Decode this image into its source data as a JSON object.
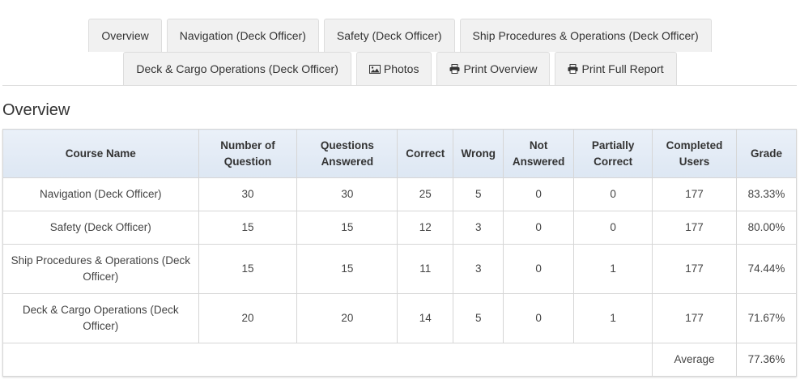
{
  "tabs": {
    "overview": "Overview",
    "navigation": "Navigation (Deck Officer)",
    "safety": "Safety (Deck Officer)",
    "ship_procedures": "Ship Procedures & Operations (Deck Officer)",
    "deck_cargo": "Deck & Cargo Operations (Deck Officer)",
    "photos": "Photos",
    "print_overview": "Print Overview",
    "print_full": "Print Full Report"
  },
  "section_title": "Overview",
  "table": {
    "headers": {
      "course_name": "Course Name",
      "num_questions": "Number of Question",
      "answered": "Questions Answered",
      "correct": "Correct",
      "wrong": "Wrong",
      "not_answered": "Not Answered",
      "partially": "Partially Correct",
      "completed": "Completed Users",
      "grade": "Grade"
    },
    "rows": [
      {
        "course": "Navigation (Deck Officer)",
        "num": "30",
        "answered": "30",
        "correct": "25",
        "wrong": "5",
        "not_answered": "0",
        "partial": "0",
        "completed": "177",
        "grade": "83.33%"
      },
      {
        "course": "Safety (Deck Officer)",
        "num": "15",
        "answered": "15",
        "correct": "12",
        "wrong": "3",
        "not_answered": "0",
        "partial": "0",
        "completed": "177",
        "grade": "80.00%"
      },
      {
        "course": "Ship Procedures & Operations (Deck Officer)",
        "num": "15",
        "answered": "15",
        "correct": "11",
        "wrong": "3",
        "not_answered": "0",
        "partial": "1",
        "completed": "177",
        "grade": "74.44%"
      },
      {
        "course": "Deck & Cargo Operations (Deck Officer)",
        "num": "20",
        "answered": "20",
        "correct": "14",
        "wrong": "5",
        "not_answered": "0",
        "partial": "1",
        "completed": "177",
        "grade": "71.67%"
      }
    ],
    "average_label": "Average",
    "average_value": "77.36%"
  },
  "icons": {
    "photos": "image-icon",
    "print": "printer-icon"
  },
  "colors": {
    "average_value": "#3c8a3c",
    "header_bg": "#e2eaf5"
  }
}
